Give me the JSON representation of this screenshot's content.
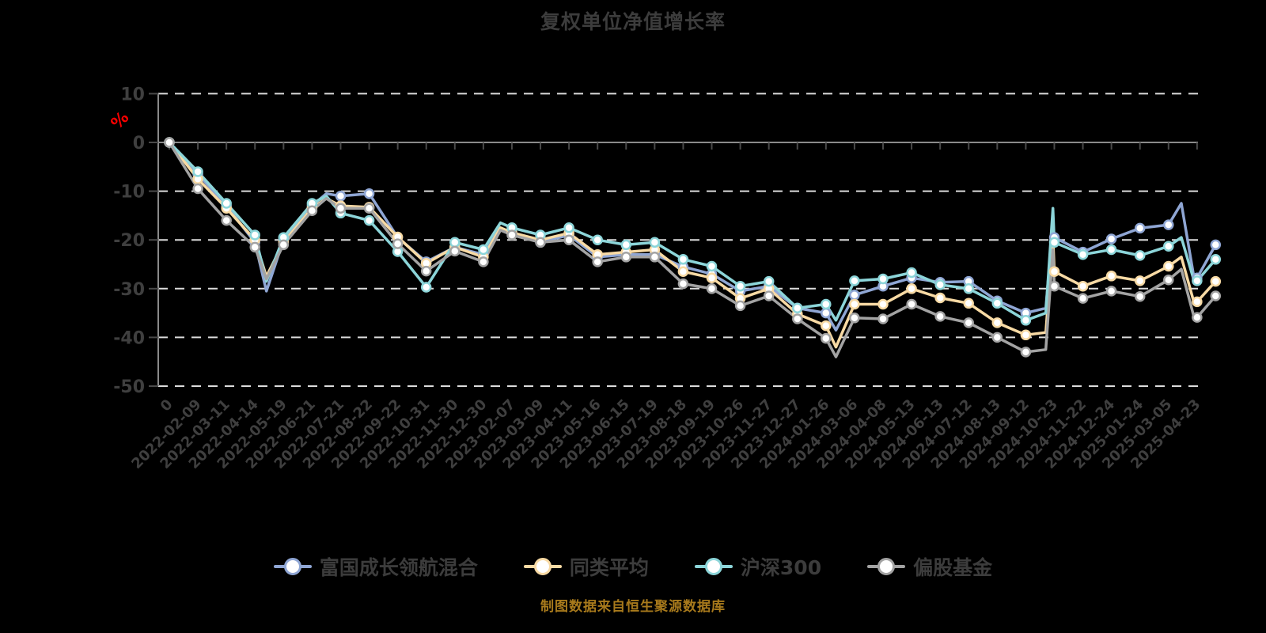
{
  "title": "复权单位净值增长率",
  "caption": "制图数据来自恒生聚源数据库",
  "y_axis_unit": "%",
  "colors": {
    "background": "#000000",
    "grid": "#dcdcdc",
    "axis": "#8a8a8a",
    "tick": "#4a4a4a",
    "label": "#3f3f3f",
    "title": "#3c3c3c",
    "caption": "#a87a1c",
    "unit": "#ff0000",
    "marker_fill": "#ffffff"
  },
  "chart_data": {
    "type": "line",
    "title": "复权单位净值增长率",
    "xlabel": "",
    "ylabel": "%",
    "ylim": [
      -50,
      10
    ],
    "y_ticks": [
      10,
      0,
      -10,
      -20,
      -30,
      -40,
      -50
    ],
    "grid": "horizontal-dashed",
    "legend_position": "bottom",
    "x_tick_labels": [
      "0",
      "2022-02-09",
      "2022-03-11",
      "2022-04-14",
      "2022-05-19",
      "2022-06-21",
      "2022-07-21",
      "2022-08-22",
      "2022-09-22",
      "2022-10-31",
      "2022-11-30",
      "2022-12-30",
      "2023-02-07",
      "2023-03-09",
      "2023-04-11",
      "2023-05-16",
      "2023-06-15",
      "2023-07-19",
      "2023-08-18",
      "2023-09-19",
      "2023-10-26",
      "2023-11-27",
      "2023-12-27",
      "2024-01-26",
      "2024-03-06",
      "2024-04-08",
      "2024-05-13",
      "2024-06-13",
      "2024-07-12",
      "2024-08-13",
      "2024-09-12",
      "2024-10-23",
      "2024-11-22",
      "2024-12-24",
      "2025-01-24",
      "2025-03-05",
      "2025-04-23"
    ],
    "x": [
      0,
      1,
      2,
      3,
      3.4,
      4,
      5,
      5.5,
      6,
      7,
      8,
      9,
      10,
      11,
      11.6,
      12,
      13,
      14,
      15,
      16,
      17,
      18,
      19,
      20,
      21,
      22,
      23,
      23.35,
      24,
      25,
      26,
      27,
      28,
      29,
      30,
      30.7,
      30.95,
      31,
      32,
      33,
      34,
      35,
      35.45,
      35.9,
      36,
      36.65
    ],
    "series": [
      {
        "name": "富国成长领航混合",
        "color": "#8fa6d4",
        "values": [
          0,
          -6.5,
          -13,
          -20.5,
          -30.5,
          -20,
          -13,
          -10.5,
          -11,
          -10.5,
          -19.5,
          -24.5,
          -21.5,
          -23,
          -17.5,
          -18.5,
          -20.5,
          -19,
          -23.5,
          -23,
          -23,
          -25.5,
          -27,
          -30.5,
          -29.5,
          -34,
          -35,
          -38.5,
          -31.3,
          -29.5,
          -27.8,
          -28.7,
          -28.5,
          -32.5,
          -35,
          -34,
          -17,
          -19.5,
          -22.5,
          -19.8,
          -17.6,
          -16.9,
          -12.5,
          -28,
          -27.8,
          -21
        ]
      },
      {
        "name": "同类平均",
        "color": "#f8daa4",
        "values": [
          0,
          -7.5,
          -13.5,
          -20,
          -27.5,
          -20.5,
          -13.5,
          -11.5,
          -13,
          -13.3,
          -19.4,
          -24.8,
          -21.5,
          -23.5,
          -17.5,
          -18.5,
          -20,
          -18.6,
          -23,
          -22.5,
          -22,
          -26.5,
          -27.8,
          -32,
          -30,
          -35.2,
          -37.6,
          -42,
          -33.2,
          -33.2,
          -30,
          -31.9,
          -33,
          -37,
          -39.5,
          -39,
          -19.5,
          -26.5,
          -29.5,
          -27.4,
          -28.4,
          -25.4,
          -23.5,
          -33,
          -32.7,
          -28.5
        ]
      },
      {
        "name": "沪深300",
        "color": "#8cd5d9",
        "values": [
          0,
          -6,
          -12.5,
          -19,
          -28.5,
          -19.5,
          -12.5,
          -11,
          -14.5,
          -16,
          -22.4,
          -29.7,
          -20.5,
          -22,
          -16.5,
          -17.5,
          -19,
          -17.5,
          -20,
          -21,
          -20.5,
          -24,
          -25.4,
          -29.5,
          -28.5,
          -34,
          -33.2,
          -36.5,
          -28.4,
          -28,
          -26.7,
          -29.2,
          -30,
          -33,
          -36.5,
          -35,
          -13.5,
          -20.5,
          -23,
          -22,
          -23.2,
          -21.3,
          -19.5,
          -28.5,
          -28.4,
          -24
        ]
      },
      {
        "name": "偏股基金",
        "color": "#a3a3a3",
        "values": [
          0,
          -9.5,
          -16,
          -21.5,
          -28,
          -21,
          -14,
          -11.5,
          -13.5,
          -13.5,
          -20.8,
          -26.4,
          -22.3,
          -24.5,
          -18,
          -19,
          -20.5,
          -20,
          -24.5,
          -23.5,
          -23.5,
          -29,
          -30,
          -33.5,
          -31.5,
          -36.2,
          -40.2,
          -44,
          -36,
          -36.2,
          -33.2,
          -35.7,
          -37,
          -40,
          -43,
          -42.5,
          -22,
          -29.5,
          -32,
          -30.5,
          -31.6,
          -28.2,
          -26,
          -36,
          -35.9,
          -31.5
        ]
      }
    ]
  }
}
